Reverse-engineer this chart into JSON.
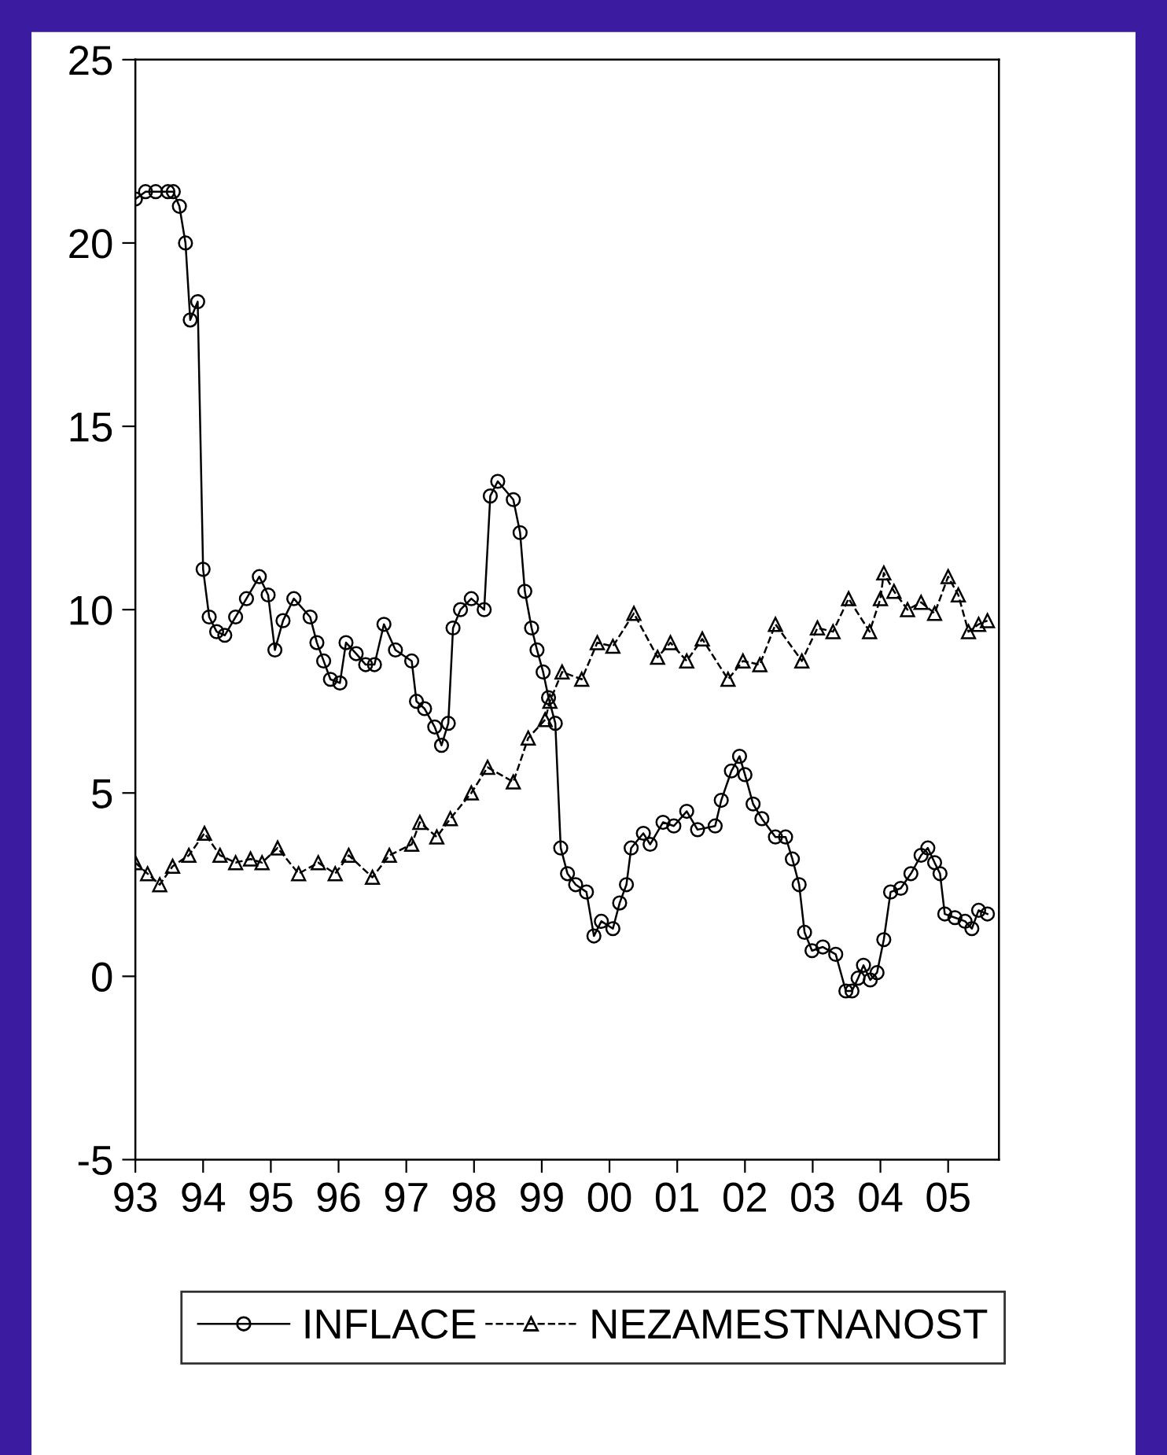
{
  "chart_data": {
    "type": "line",
    "xlim": [
      1993,
      2005.75
    ],
    "ylim": [
      -5,
      25
    ],
    "xticks": [
      {
        "value": 1993,
        "label": "93"
      },
      {
        "value": 1994,
        "label": "94"
      },
      {
        "value": 1995,
        "label": "95"
      },
      {
        "value": 1996,
        "label": "96"
      },
      {
        "value": 1997,
        "label": "97"
      },
      {
        "value": 1998,
        "label": "98"
      },
      {
        "value": 1999,
        "label": "99"
      },
      {
        "value": 2000,
        "label": "00"
      },
      {
        "value": 2001,
        "label": "01"
      },
      {
        "value": 2002,
        "label": "02"
      },
      {
        "value": 2003,
        "label": "03"
      },
      {
        "value": 2004,
        "label": "04"
      },
      {
        "value": 2005,
        "label": "05"
      }
    ],
    "yticks": [
      -5,
      0,
      5,
      10,
      15,
      20,
      25
    ],
    "grid": false,
    "legend": "bottom",
    "series": [
      {
        "name": "INFLACE",
        "color": "#000000",
        "marker": "circle",
        "line_style": "solid",
        "x": [
          1993.0,
          1993.15,
          1993.3,
          1993.48,
          1993.56,
          1993.65,
          1993.74,
          1993.81,
          1993.92,
          1994.0,
          1994.09,
          1994.2,
          1994.32,
          1994.48,
          1994.64,
          1994.83,
          1994.96,
          1995.06,
          1995.18,
          1995.34,
          1995.58,
          1995.68,
          1995.78,
          1995.88,
          1996.02,
          1996.11,
          1996.26,
          1996.4,
          1996.53,
          1996.67,
          1996.84,
          1997.08,
          1997.15,
          1997.27,
          1997.42,
          1997.52,
          1997.62,
          1997.69,
          1997.8,
          1997.96,
          1998.15,
          1998.24,
          1998.35,
          1998.58,
          1998.68,
          1998.75,
          1998.85,
          1998.93,
          1999.02,
          1999.1,
          1999.2,
          1999.28,
          1999.38,
          1999.5,
          1999.66,
          1999.77,
          1999.88,
          2000.05,
          2000.15,
          2000.25,
          2000.32,
          2000.5,
          2000.6,
          2000.79,
          2000.95,
          2001.14,
          2001.3,
          2001.56,
          2001.65,
          2001.8,
          2001.92,
          2002.0,
          2002.12,
          2002.25,
          2002.45,
          2002.6,
          2002.7,
          2002.8,
          2002.88,
          2002.99,
          2003.15,
          2003.34,
          2003.49,
          2003.58,
          2003.67,
          2003.75,
          2003.85,
          2003.95,
          2004.05,
          2004.15,
          2004.3,
          2004.45,
          2004.6,
          2004.7,
          2004.8,
          2004.88,
          2004.95,
          2005.1,
          2005.25,
          2005.35,
          2005.45,
          2005.58
        ],
        "values": [
          21.2,
          21.4,
          21.4,
          21.4,
          21.4,
          21.0,
          20.0,
          17.9,
          18.4,
          11.1,
          9.8,
          9.4,
          9.3,
          9.8,
          10.3,
          10.9,
          10.4,
          8.9,
          9.7,
          10.3,
          9.8,
          9.1,
          8.6,
          8.1,
          8.0,
          9.1,
          8.8,
          8.5,
          8.5,
          9.6,
          8.9,
          8.6,
          7.5,
          7.3,
          6.8,
          6.3,
          6.9,
          9.5,
          10.0,
          10.3,
          10.0,
          13.1,
          13.5,
          13.0,
          12.1,
          10.5,
          9.5,
          8.9,
          8.3,
          7.6,
          6.9,
          3.5,
          2.8,
          2.5,
          2.3,
          1.1,
          1.5,
          1.3,
          2.0,
          2.5,
          3.5,
          3.9,
          3.6,
          4.2,
          4.1,
          4.5,
          4.0,
          4.1,
          4.8,
          5.6,
          6.0,
          5.5,
          4.7,
          4.3,
          3.8,
          3.8,
          3.2,
          2.5,
          1.2,
          0.7,
          0.8,
          0.6,
          -0.4,
          -0.4,
          -0.05,
          0.3,
          -0.1,
          0.1,
          1.0,
          2.3,
          2.4,
          2.8,
          3.3,
          3.5,
          3.1,
          2.8,
          1.7,
          1.6,
          1.5,
          1.3,
          1.8,
          1.7
        ]
      },
      {
        "name": "NEZAMESTNANOST",
        "color": "#000000",
        "marker": "triangle",
        "line_style": "dashed",
        "x": [
          1993.0,
          1993.18,
          1993.36,
          1993.55,
          1993.79,
          1994.02,
          1994.25,
          1994.48,
          1994.7,
          1994.87,
          1995.1,
          1995.41,
          1995.7,
          1995.95,
          1996.15,
          1996.5,
          1996.75,
          1997.08,
          1997.2,
          1997.45,
          1997.65,
          1997.96,
          1998.2,
          1998.58,
          1998.8,
          1999.05,
          1999.12,
          1999.3,
          1999.59,
          1999.82,
          2000.05,
          2000.36,
          2000.71,
          2000.9,
          2001.14,
          2001.37,
          2001.75,
          2001.97,
          2002.22,
          2002.45,
          2002.84,
          2003.07,
          2003.3,
          2003.53,
          2003.84,
          2004.0,
          2004.05,
          2004.2,
          2004.4,
          2004.6,
          2004.8,
          2005.0,
          2005.15,
          2005.3,
          2005.45,
          2005.58
        ],
        "values": [
          3.1,
          2.8,
          2.5,
          3.0,
          3.3,
          3.9,
          3.3,
          3.1,
          3.2,
          3.1,
          3.5,
          2.8,
          3.1,
          2.8,
          3.3,
          2.7,
          3.3,
          3.6,
          4.2,
          3.8,
          4.3,
          5.0,
          5.7,
          5.3,
          6.5,
          7.0,
          7.5,
          8.3,
          8.1,
          9.1,
          9.0,
          9.9,
          8.7,
          9.1,
          8.6,
          9.2,
          8.1,
          8.6,
          8.5,
          9.6,
          8.6,
          9.5,
          9.4,
          10.3,
          9.4,
          10.3,
          11.0,
          10.5,
          10.0,
          10.2,
          9.9,
          10.9,
          10.4,
          9.4,
          9.6,
          9.7
        ]
      }
    ]
  }
}
